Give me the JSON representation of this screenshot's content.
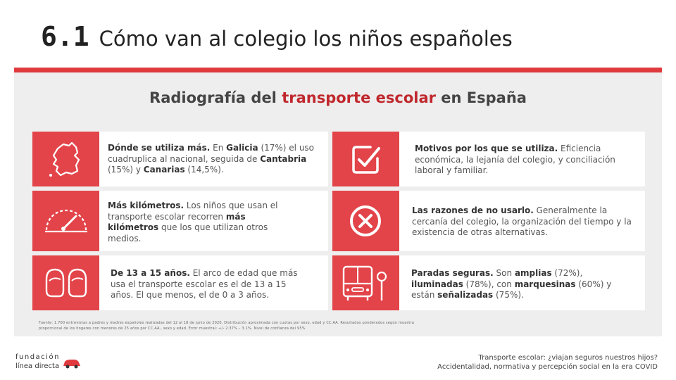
{
  "header": {
    "number": "6.1",
    "title": "Cómo van al colegio los niños españoles"
  },
  "subtitle": {
    "pre": "Radiografía del ",
    "highlight": "transporte escolar",
    "post": " en España"
  },
  "cards": [
    {
      "icon": "map-icon",
      "parts": [
        {
          "b": "Dónde se utiliza más."
        },
        {
          "t": " En "
        },
        {
          "b": "Galicia"
        },
        {
          "t": " (17%) el uso cuadruplica al nacional, seguida de "
        },
        {
          "b": "Cantabria"
        },
        {
          "t": " (15%) y "
        },
        {
          "b": "Canarias"
        },
        {
          "t": " (14,5%)."
        }
      ]
    },
    {
      "icon": "checkbox-icon",
      "parts": [
        {
          "b": "Motivos por los que se utiliza."
        },
        {
          "t": " Eficiencia económica, la lejanía del colegio, y conciliación laboral y familiar."
        }
      ]
    },
    {
      "icon": "speedometer-icon",
      "parts": [
        {
          "b": "Más kilómetros."
        },
        {
          "t": " Los niños que usan el transporte escolar recorren "
        },
        {
          "b": "más kilómetros"
        },
        {
          "t": " que los que utilizan otros medios."
        }
      ]
    },
    {
      "icon": "x-circle-icon",
      "parts": [
        {
          "b": "Las razones de no usarlo."
        },
        {
          "t": " Generalmente la cercanía del colegio, la organización del tiempo y la existencia de otras alternativas."
        }
      ]
    },
    {
      "icon": "children-icon",
      "parts": [
        {
          "b": "De 13 a 15 años."
        },
        {
          "t": " El arco de edad que más usa el transporte escolar es el de 13 a 15 años. El que menos, el de 0 a 3 años."
        }
      ]
    },
    {
      "icon": "bus-stop-icon",
      "parts": [
        {
          "b": "Paradas seguras."
        },
        {
          "t": " Son "
        },
        {
          "b": "amplias"
        },
        {
          "t": " (72%), "
        },
        {
          "b": "iluminadas"
        },
        {
          "t": " (78%), con "
        },
        {
          "b": "marquesinas"
        },
        {
          "t": " (60%) y están "
        },
        {
          "b": "señalizadas"
        },
        {
          "t": " (75%)."
        }
      ]
    }
  ],
  "sources": "Fuente: 1.700 entrevistas a padres y madres españoles realizadas del 12 al 18 de junio de 2020. Distribución aproximada con cuotas por sexo, edad y CC.AA. Resultados ponderados según muestra proporcional de los hogares con menores de 25 años por CC.AA., sexo y edad. Error muestral: +/- 2.37% – 3.1%. Nivel de confianza del 95%",
  "logo": {
    "line1": "fundación",
    "line2": "línea directa"
  },
  "footer": {
    "line1": "Transporte escolar: ¿viajan seguros nuestros hijos?",
    "line2": "Accidentalidad, normativa y percepción social en la era COVID"
  },
  "colors": {
    "accent": "#e24449",
    "rule": "#e03a3e",
    "panel": "#eeeeee"
  }
}
